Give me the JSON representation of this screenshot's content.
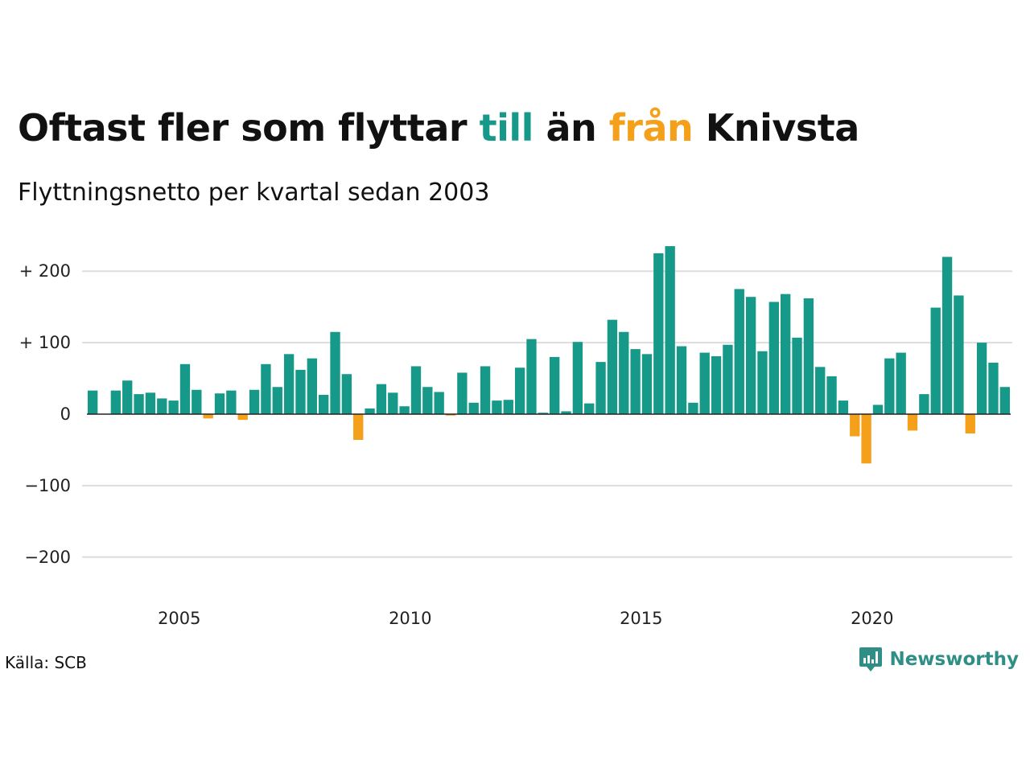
{
  "title": {
    "part1": "Oftast fler som flyttar",
    "till": "till",
    "part2": "än",
    "fran": "från",
    "part3": "Knivsta"
  },
  "subtitle": "Flyttningsnetto per kvartal sedan 2003",
  "source": "Källa: SCB",
  "logo": {
    "text": "Newsworthy",
    "icon": "newsworthy-logo-icon"
  },
  "colors": {
    "positive": "#17998a",
    "negative": "#f5a01a",
    "grid": "#dddddd",
    "baseline": "#222222"
  },
  "chart_data": {
    "type": "bar",
    "title": "Oftast fler som flyttar till än från Knivsta",
    "subtitle": "Flyttningsnetto per kvartal sedan 2003",
    "x_start": "2003 Q1",
    "quarters_per_year": 4,
    "xlim": [
      2003.0,
      2023.0
    ],
    "ylim": [
      -250,
      250
    ],
    "yticks": [
      -200,
      -100,
      0,
      100,
      200
    ],
    "ytick_labels": [
      "−200",
      "−100",
      "0",
      "+ 100",
      "+ 200"
    ],
    "xticks": [
      2005,
      2010,
      2015,
      2020
    ],
    "xtick_labels": [
      "2005",
      "2010",
      "2015",
      "2020"
    ],
    "grid": true,
    "values": [
      33,
      0,
      33,
      47,
      28,
      30,
      22,
      19,
      70,
      34,
      -6,
      29,
      33,
      -8,
      34,
      70,
      38,
      84,
      62,
      78,
      27,
      115,
      56,
      -36,
      8,
      42,
      30,
      11,
      67,
      38,
      31,
      -2,
      58,
      16,
      67,
      19,
      20,
      65,
      105,
      2,
      80,
      4,
      101,
      15,
      73,
      132,
      115,
      91,
      84,
      225,
      235,
      95,
      16,
      86,
      81,
      97,
      175,
      164,
      88,
      157,
      168,
      107,
      162,
      66,
      53,
      19,
      -31,
      -69,
      13,
      78,
      86,
      -23,
      28,
      149,
      220,
      166,
      -27,
      100,
      72,
      38
    ]
  }
}
